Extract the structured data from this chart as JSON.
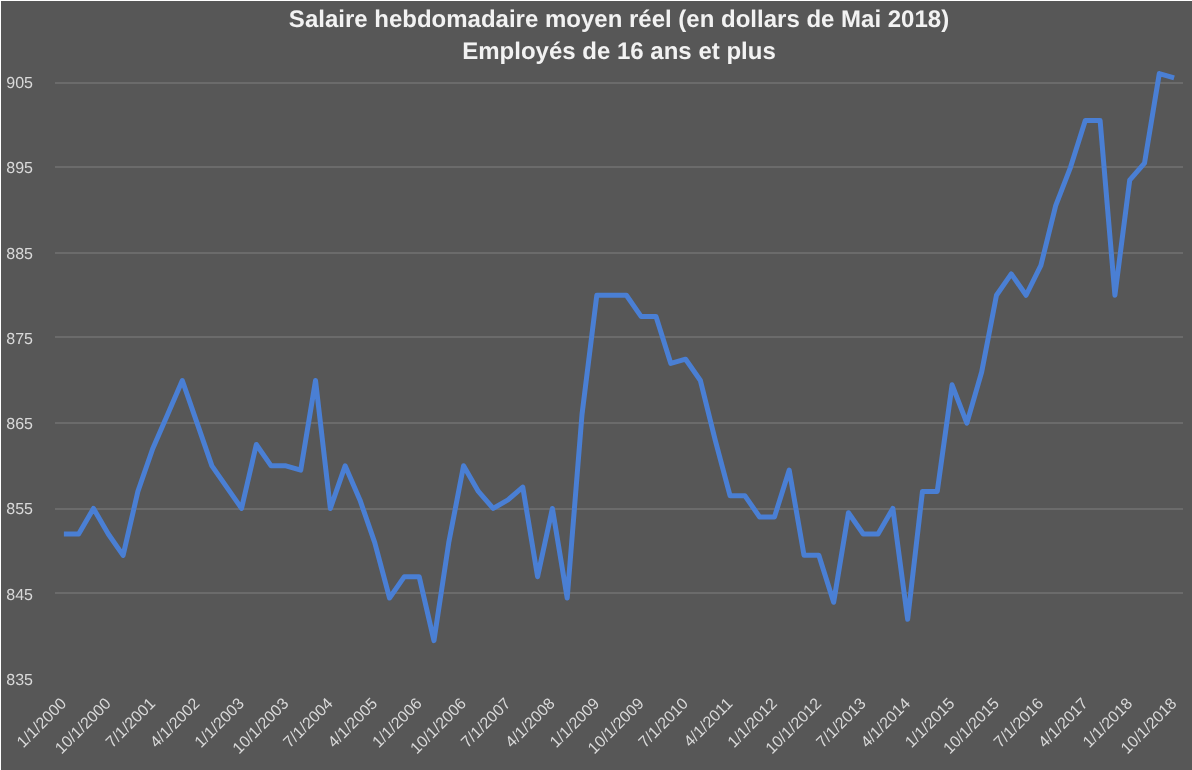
{
  "chart_data": {
    "type": "line",
    "title": "Salaire hebdomadaire moyen réel (en dollars de Mai 2018)",
    "subtitle": "Employés de 16 ans et plus",
    "categories": [
      "1/1/2000",
      null,
      null,
      "10/1/2000",
      null,
      null,
      "7/1/2001",
      null,
      null,
      "4/1/2002",
      null,
      null,
      "1/1/2003",
      null,
      null,
      "10/1/2003",
      null,
      null,
      "7/1/2004",
      null,
      null,
      "4/1/2005",
      null,
      null,
      "1/1/2006",
      null,
      null,
      "10/1/2006",
      null,
      null,
      "7/1/2007",
      null,
      null,
      "4/1/2008",
      null,
      null,
      "1/1/2009",
      null,
      null,
      "10/1/2009",
      null,
      null,
      "7/1/2010",
      null,
      null,
      "4/1/2011",
      null,
      null,
      "1/1/2012",
      null,
      null,
      "10/1/2012",
      null,
      null,
      "7/1/2013",
      null,
      null,
      "4/1/2014",
      null,
      null,
      "1/1/2015",
      null,
      null,
      "10/1/2015",
      null,
      null,
      "7/1/2016",
      null,
      null,
      "4/1/2017",
      null,
      null,
      "1/1/2018",
      null,
      null,
      "10/1/2018"
    ],
    "series": [
      {
        "color": "#4a7fd4",
        "values": [
          852,
          852,
          855,
          852,
          849.5,
          857,
          862,
          866,
          870,
          865,
          860,
          857.5,
          855,
          862.5,
          860,
          860,
          859.5,
          870,
          855,
          860,
          856,
          851,
          844.5,
          847,
          847,
          839.5,
          851,
          860,
          857,
          855,
          856,
          857.5,
          847,
          855,
          844.5,
          866,
          880,
          880,
          880,
          877.5,
          877.5,
          872,
          872.5,
          870,
          863,
          856.5,
          856.5,
          854,
          854,
          859.5,
          849.5,
          849.5,
          844,
          854.5,
          852,
          852,
          855,
          842,
          857,
          857,
          869.5,
          865,
          871,
          880,
          882.5,
          880,
          883.5,
          890.5,
          895,
          900.5,
          900.5,
          880,
          893.5,
          895.5,
          906,
          905.5
        ]
      }
    ],
    "ylim": [
      835,
      907
    ],
    "yticks": [
      835,
      845,
      855,
      865,
      875,
      885,
      895,
      905
    ],
    "grid": "y",
    "line_style": "solid"
  }
}
